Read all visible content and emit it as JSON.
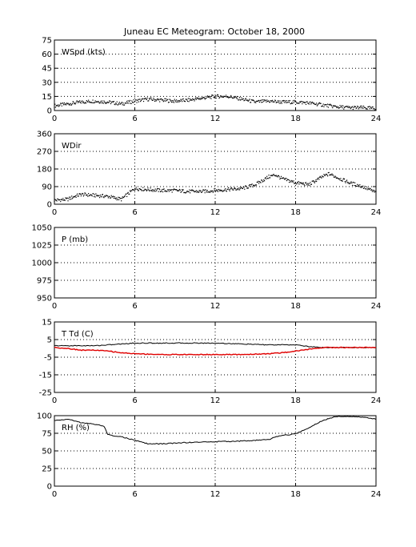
{
  "title": "Juneau EC Meteogram:    October 18, 2000",
  "colors": {
    "axis": "#000000",
    "grid": "#000000",
    "series_primary": "#000000",
    "series_dewpoint": "#e00000"
  },
  "chart_data": [
    {
      "type": "scatter",
      "panel_label": "WSpd (kts)",
      "xlim": [
        0,
        24
      ],
      "ylim": [
        0,
        75
      ],
      "xticks": [
        0,
        6,
        12,
        18,
        24
      ],
      "yticks": [
        0,
        15,
        30,
        45,
        60,
        75
      ],
      "grid": true,
      "series": [
        {
          "color": "#000000",
          "x": [
            0,
            1,
            2,
            3,
            4,
            5,
            6,
            7,
            8,
            9,
            10,
            11,
            12,
            13,
            14,
            15,
            16,
            17,
            18,
            19,
            20,
            21,
            22,
            23,
            24
          ],
          "y": [
            5,
            7,
            9,
            10,
            9,
            7,
            10,
            12,
            11,
            10,
            11,
            13,
            15,
            15,
            12,
            9,
            10,
            9,
            9,
            8,
            6,
            4,
            3,
            3,
            2
          ]
        }
      ]
    },
    {
      "type": "scatter",
      "panel_label": "WDir",
      "xlim": [
        0,
        24
      ],
      "ylim": [
        0,
        360
      ],
      "xticks": [
        0,
        6,
        12,
        18,
        24
      ],
      "yticks": [
        0,
        90,
        180,
        270,
        360
      ],
      "grid": true,
      "series": [
        {
          "color": "#000000",
          "x": [
            0,
            1,
            1.5,
            2,
            3,
            4,
            5,
            6,
            7,
            8,
            9,
            10,
            11,
            12,
            13,
            14,
            15,
            16,
            16.5,
            17,
            18,
            19,
            20,
            20.5,
            21,
            22,
            23,
            24
          ],
          "y": [
            20,
            25,
            40,
            50,
            45,
            40,
            25,
            80,
            75,
            70,
            70,
            65,
            65,
            70,
            75,
            80,
            100,
            140,
            150,
            130,
            110,
            100,
            140,
            155,
            140,
            110,
            90,
            60
          ]
        }
      ]
    },
    {
      "type": "line",
      "panel_label": "P (mb)",
      "xlim": [
        0,
        24
      ],
      "ylim": [
        950,
        1050
      ],
      "xticks": [
        0,
        6,
        12,
        18,
        24
      ],
      "yticks": [
        950,
        975,
        1000,
        1025,
        1050
      ],
      "grid": true,
      "series": []
    },
    {
      "type": "line",
      "panel_label": "T Td (C)",
      "xlim": [
        0,
        24
      ],
      "ylim": [
        -25,
        15
      ],
      "xticks": [
        0,
        6,
        12,
        18,
        24
      ],
      "yticks": [
        -25,
        -15,
        -5,
        5,
        15
      ],
      "grid": true,
      "series": [
        {
          "color": "#000000",
          "x": [
            0,
            1,
            2,
            3,
            4,
            5,
            6,
            8,
            10,
            12,
            14,
            16,
            18,
            19,
            20,
            22,
            24
          ],
          "y": [
            1.5,
            1.5,
            1.5,
            1.5,
            2,
            2.5,
            3,
            3,
            3,
            3,
            2.5,
            2,
            2,
            1,
            0.5,
            0.5,
            0.5
          ]
        },
        {
          "color": "#e00000",
          "x": [
            0,
            1,
            2,
            3,
            4,
            5,
            6,
            8,
            10,
            12,
            14,
            16,
            17,
            18,
            19,
            20,
            22,
            24
          ],
          "y": [
            0.5,
            0,
            -1,
            -1,
            -1.5,
            -2.5,
            -3,
            -3.5,
            -3.5,
            -3.5,
            -3.5,
            -3,
            -2.5,
            -1.5,
            -0.5,
            0.5,
            0.5,
            0.5
          ]
        }
      ]
    },
    {
      "type": "line",
      "panel_label": "RH (%)",
      "xlim": [
        0,
        24
      ],
      "ylim": [
        0,
        100
      ],
      "xticks": [
        0,
        6,
        12,
        18,
        24
      ],
      "yticks": [
        0,
        25,
        50,
        75,
        100
      ],
      "grid": true,
      "series": [
        {
          "color": "#000000",
          "x": [
            0,
            1,
            2,
            3,
            3.7,
            4,
            5,
            6,
            7,
            8,
            10,
            12,
            14,
            16,
            16.5,
            17,
            18,
            19,
            20,
            21,
            22,
            23,
            24
          ],
          "y": [
            93,
            95,
            90,
            88,
            85,
            73,
            70,
            65,
            60,
            60,
            62,
            63,
            64,
            66,
            70,
            72,
            74,
            83,
            93,
            99,
            99,
            98,
            95
          ]
        }
      ]
    }
  ]
}
